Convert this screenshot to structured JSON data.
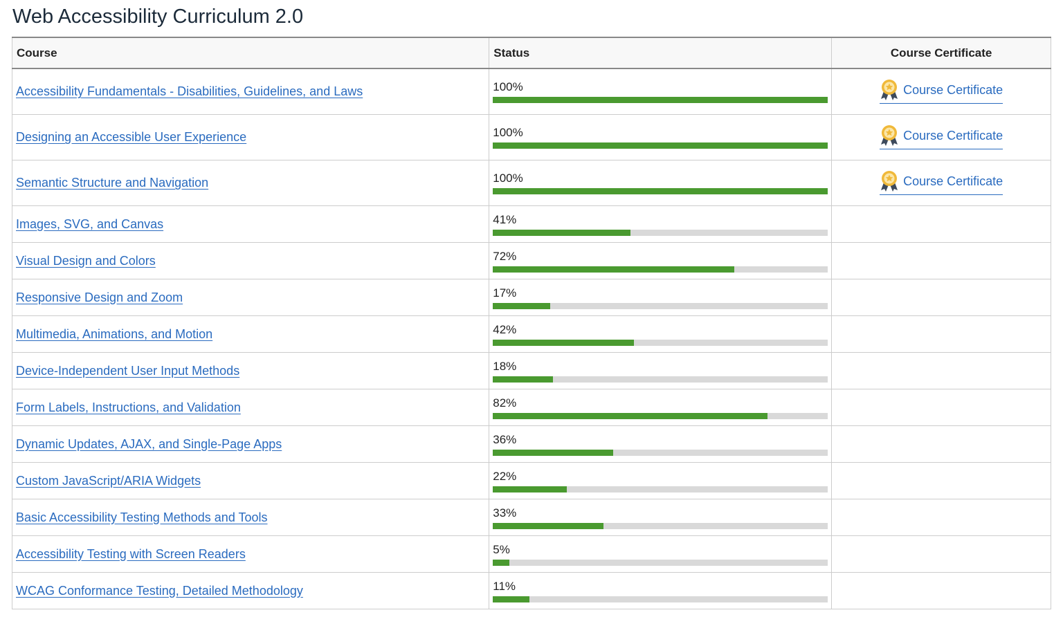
{
  "header": {
    "title": "Web Accessibility Curriculum 2.0"
  },
  "table": {
    "columns": [
      "Course",
      "Status",
      "Course Certificate"
    ],
    "rows": [
      {
        "course": "Accessibility Fundamentals - Disabilities, Guidelines, and Laws",
        "status": {
          "value": 100,
          "label": "100%"
        },
        "certificate": "Course Certificate"
      },
      {
        "course": "Designing an Accessible User Experience",
        "status": {
          "value": 100,
          "label": "100%"
        },
        "certificate": "Course Certificate"
      },
      {
        "course": "Semantic Structure and Navigation",
        "status": {
          "value": 100,
          "label": "100%"
        },
        "certificate": "Course Certificate"
      },
      {
        "course": "Images, SVG, and Canvas",
        "status": {
          "value": 41,
          "label": "41%"
        }
      },
      {
        "course": "Visual Design and Colors",
        "status": {
          "value": 72,
          "label": "72%"
        }
      },
      {
        "course": "Responsive Design and Zoom",
        "status": {
          "value": 17,
          "label": "17%"
        }
      },
      {
        "course": "Multimedia, Animations, and Motion",
        "status": {
          "value": 42,
          "label": "42%"
        }
      },
      {
        "course": "Device-Independent User Input Methods",
        "status": {
          "value": 18,
          "label": "18%"
        }
      },
      {
        "course": "Form Labels, Instructions, and Validation",
        "status": {
          "value": 82,
          "label": "82%"
        }
      },
      {
        "course": "Dynamic Updates, AJAX, and Single-Page Apps",
        "status": {
          "value": 36,
          "label": "36%"
        }
      },
      {
        "course": "Custom JavaScript/ARIA Widgets",
        "status": {
          "value": 22,
          "label": "22%"
        }
      },
      {
        "course": "Basic Accessibility Testing Methods and Tools",
        "status": {
          "value": 33,
          "label": "33%"
        }
      },
      {
        "course": "Accessibility Testing with Screen Readers",
        "status": {
          "value": 5,
          "label": "5%"
        }
      },
      {
        "course": "WCAG Conformance Testing, Detailed Methodology",
        "status": {
          "value": 11,
          "label": "11%"
        }
      }
    ]
  }
}
